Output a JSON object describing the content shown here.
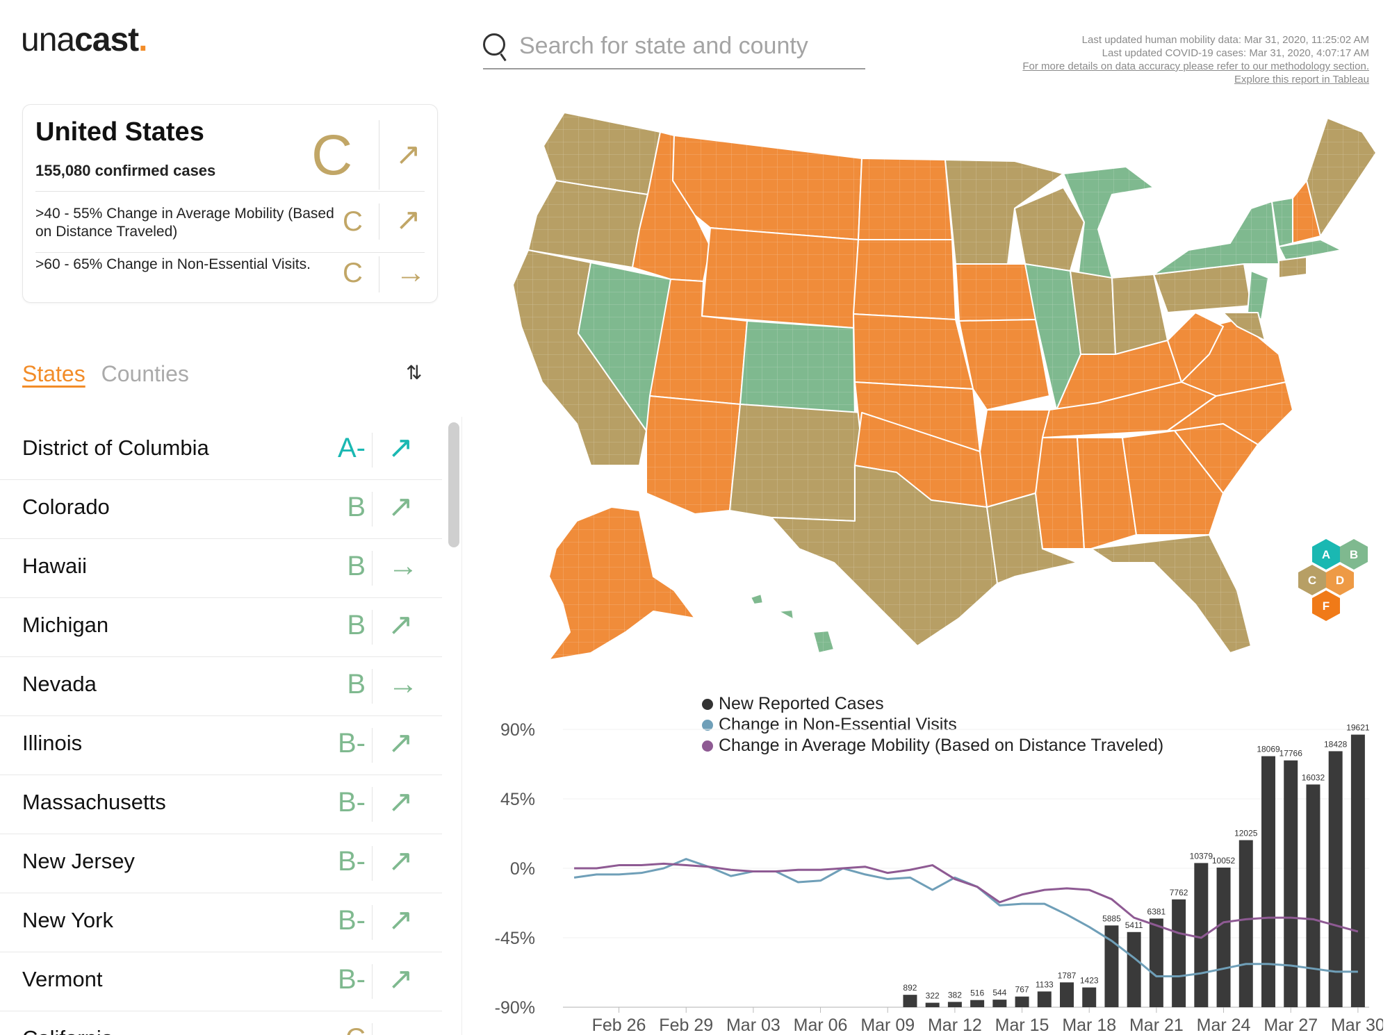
{
  "brand": {
    "logo_light": "una",
    "logo_bold": "cast",
    "logo_dot": "."
  },
  "search": {
    "placeholder": "Search for state and county"
  },
  "updates": {
    "mobility": "Last updated human mobility data: Mar 31, 2020, 11:25:02 AM",
    "covid": "Last updated COVID-19 cases: Mar 31, 2020, 4:07:17 AM",
    "methodology_link": "For more details on data accuracy please refer to our methodology section.",
    "tableau_link": "Explore this report in Tableau"
  },
  "summary": {
    "title": "United States",
    "cases": "155,080 confirmed cases",
    "grade": "C",
    "trend_icon": "arrow-up-right-icon",
    "metrics": [
      {
        "text": ">40 - 55% Change in Average Mobility (Based on Distance Traveled)",
        "grade": "C",
        "trend_icon": "arrow-up-right-icon"
      },
      {
        "text": ">60 - 65% Change in Non-Essential Visits.",
        "grade": "C",
        "trend_icon": "arrow-right-icon"
      }
    ]
  },
  "tabs": {
    "states": "States",
    "counties": "Counties",
    "sort_icon": "sort-icon"
  },
  "states": [
    {
      "name": "District of Columbia",
      "grade": "A-",
      "trend": "↗",
      "color": "#1ab8b2"
    },
    {
      "name": "Colorado",
      "grade": "B",
      "trend": "↗",
      "color": "#7fb98f"
    },
    {
      "name": "Hawaii",
      "grade": "B",
      "trend": "→",
      "color": "#7fb98f"
    },
    {
      "name": "Michigan",
      "grade": "B",
      "trend": "↗",
      "color": "#7fb98f"
    },
    {
      "name": "Nevada",
      "grade": "B",
      "trend": "→",
      "color": "#7fb98f"
    },
    {
      "name": "Illinois",
      "grade": "B-",
      "trend": "↗",
      "color": "#7fb98f"
    },
    {
      "name": "Massachusetts",
      "grade": "B-",
      "trend": "↗",
      "color": "#7fb98f"
    },
    {
      "name": "New Jersey",
      "grade": "B-",
      "trend": "↗",
      "color": "#7fb98f"
    },
    {
      "name": "New York",
      "grade": "B-",
      "trend": "↗",
      "color": "#7fb98f"
    },
    {
      "name": "Vermont",
      "grade": "B-",
      "trend": "↗",
      "color": "#7fb98f"
    },
    {
      "name": "California",
      "grade": "C",
      "trend": "→",
      "color": "#c1a666"
    }
  ],
  "map_legend": {
    "A": {
      "label": "A",
      "color": "#1ab8b2"
    },
    "B": {
      "label": "B",
      "color": "#7fb98f"
    },
    "C": {
      "label": "C",
      "color": "#b79f65"
    },
    "D": {
      "label": "D",
      "color": "#ee9a45"
    },
    "F": {
      "label": "F",
      "color": "#f07a18"
    }
  },
  "chart_data": {
    "type": "bar",
    "legend": [
      {
        "label": "New Reported Cases",
        "color": "#333333"
      },
      {
        "label": "Change in Non-Essential Visits",
        "color": "#6f9fb8"
      },
      {
        "label": "Change in Average Mobility (Based on Distance Traveled)",
        "color": "#8e5a93"
      }
    ],
    "y_ticks": [
      "90%",
      "45%",
      "0%",
      "-45%",
      "-90%"
    ],
    "ylim_pct": [
      -90,
      90
    ],
    "x_ticks": [
      "Feb 26",
      "Feb 29",
      "Mar 03",
      "Mar 06",
      "Mar 09",
      "Mar 12",
      "Mar 15",
      "Mar 18",
      "Mar 21",
      "Mar 24",
      "Mar 27",
      "Mar 30"
    ],
    "dates": [
      "Feb 24",
      "Feb 25",
      "Feb 26",
      "Feb 27",
      "Feb 28",
      "Feb 29",
      "Mar 01",
      "Mar 02",
      "Mar 03",
      "Mar 04",
      "Mar 05",
      "Mar 06",
      "Mar 07",
      "Mar 08",
      "Mar 09",
      "Mar 10",
      "Mar 11",
      "Mar 12",
      "Mar 13",
      "Mar 14",
      "Mar 15",
      "Mar 16",
      "Mar 17",
      "Mar 18",
      "Mar 19",
      "Mar 20",
      "Mar 21",
      "Mar 22",
      "Mar 23",
      "Mar 24",
      "Mar 25",
      "Mar 26",
      "Mar 27",
      "Mar 28",
      "Mar 29",
      "Mar 30"
    ],
    "cases": {
      "dates": [
        "Mar 10",
        "Mar 11",
        "Mar 12",
        "Mar 13",
        "Mar 14",
        "Mar 15",
        "Mar 16",
        "Mar 17",
        "Mar 18",
        "Mar 19",
        "Mar 20",
        "Mar 21",
        "Mar 22",
        "Mar 23",
        "Mar 24",
        "Mar 25",
        "Mar 26",
        "Mar 27",
        "Mar 28",
        "Mar 29",
        "Mar 30"
      ],
      "values": [
        892,
        322,
        382,
        516,
        544,
        767,
        1133,
        1787,
        1423,
        5885,
        5411,
        6381,
        7762,
        10379,
        10052,
        12025,
        18069,
        17766,
        16032,
        18428,
        19621
      ],
      "ymax": 20500
    },
    "non_essential_visits": [
      -6,
      -4,
      -4,
      -3,
      0,
      6,
      1,
      -5,
      -2,
      -2,
      -9,
      -8,
      0,
      -4,
      -7,
      -6,
      -14,
      -6,
      -12,
      -24,
      -23,
      -23,
      -30,
      -38,
      -47,
      -58,
      -70,
      -70,
      -68,
      -65,
      -62,
      -62,
      -63,
      -65,
      -67,
      -67
    ],
    "average_mobility": [
      0,
      0,
      2,
      2,
      3,
      2,
      1,
      -1,
      -2,
      -2,
      -1,
      -1,
      0,
      1,
      -3,
      -1,
      2,
      -7,
      -12,
      -22,
      -17,
      -14,
      -13,
      -14,
      -20,
      -32,
      -37,
      -42,
      -45,
      -35,
      -33,
      -32,
      -32,
      -33,
      -37,
      -41
    ]
  }
}
